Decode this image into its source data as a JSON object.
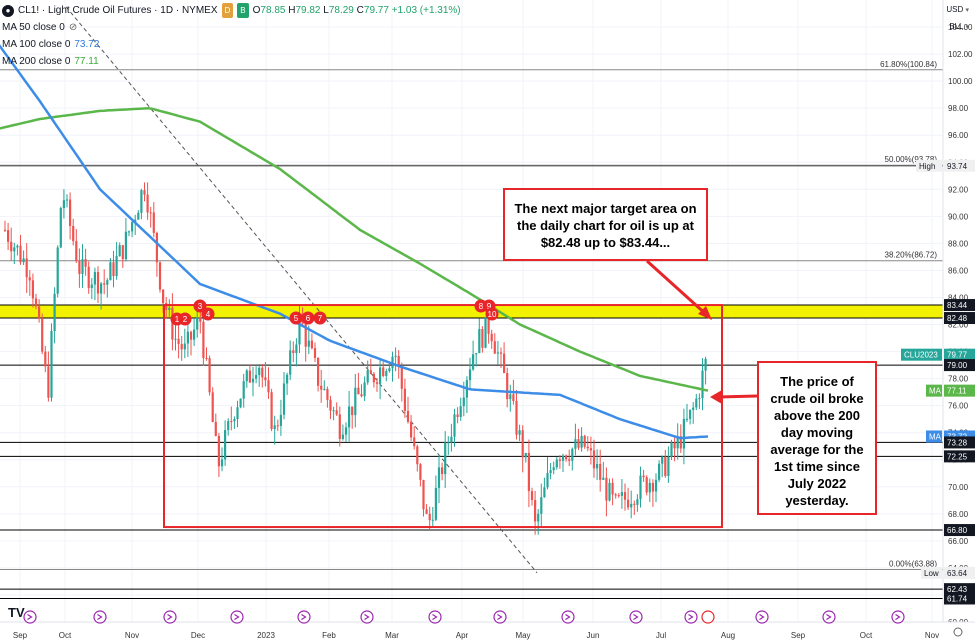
{
  "header": {
    "symbol_icon": "oil-drop-icon",
    "title": "CL1! · Light Crude Oil Futures · 1D · NYMEX",
    "badge_d": "D",
    "badge_b": "B",
    "ohlc": {
      "o": "78.85",
      "h": "79.82",
      "l": "78.29",
      "c": "79.77",
      "change": "+1.03 (+1.31%)"
    },
    "ma50_label": "MA 50 close 0",
    "ma100_label": "MA 100 close 0",
    "ma100_value": "73.72",
    "ma200_label": "MA 200 close 0",
    "ma200_value": "77.11",
    "currency": "USD",
    "unit": "BLL"
  },
  "callouts": {
    "target": "The next major target area on the daily chart for oil is up at $82.48 up to $83.44...",
    "broke": "The price of crude oil broke above the 200 day moving average for the 1st time since July 2022 yesterday."
  },
  "colors": {
    "up": "#26a69a",
    "down": "#ef5350",
    "ma100": "#3d8de8",
    "ma200": "#5bb74a",
    "zone": "#f2f200",
    "box": "#e8262a",
    "grid": "#f0f3fa"
  },
  "chart_data": {
    "type": "candlestick",
    "symbol": "CL1!",
    "timeframe": "1D",
    "exchange": "NYMEX",
    "ylim": [
      60,
      106
    ],
    "y_ticks": [
      60.0,
      62.0,
      64.0,
      66.0,
      68.0,
      70.0,
      72.0,
      74.0,
      76.0,
      78.0,
      80.0,
      82.0,
      84.0,
      86.0,
      88.0,
      90.0,
      92.0,
      94.0,
      96.0,
      98.0,
      100.0,
      102.0,
      104.0
    ],
    "x_labels": [
      "Sep",
      "Oct",
      "Nov",
      "Dec",
      "2023",
      "Feb",
      "Mar",
      "Apr",
      "May",
      "Jun",
      "Jul",
      "Aug",
      "Sep",
      "Oct",
      "Nov"
    ],
    "fib_levels": [
      {
        "label": "61.80%(100.84)",
        "value": 100.84
      },
      {
        "label": "50.00%(93.78)",
        "value": 93.78
      },
      {
        "label": "38.20%(86.72)",
        "value": 86.72
      },
      {
        "label": "0.00%(63.88)",
        "value": 63.88
      }
    ],
    "horizontal_lines": [
      93.74,
      83.44,
      82.48,
      79.0,
      73.28,
      72.25,
      66.8,
      62.43,
      61.74
    ],
    "target_zone": [
      82.48,
      83.44
    ],
    "price_labels": [
      {
        "text": "High",
        "value": "93.74"
      },
      {
        "text": "",
        "value": "83.44"
      },
      {
        "text": "",
        "value": "82.48"
      },
      {
        "text": "CLU2023",
        "value": "79.77"
      },
      {
        "text": "",
        "value": "79.00"
      },
      {
        "text": "MA",
        "value": "77.11"
      },
      {
        "text": "MA",
        "value": "73.72"
      },
      {
        "text": "",
        "value": "73.28"
      },
      {
        "text": "",
        "value": "72.25"
      },
      {
        "text": "",
        "value": "66.80"
      },
      {
        "text": "Low",
        "value": "63.64"
      },
      {
        "text": "",
        "value": "62.43"
      },
      {
        "text": "",
        "value": "61.74"
      }
    ],
    "touch_markers": [
      "1",
      "2",
      "3",
      "4",
      "5",
      "6",
      "7",
      "8",
      "9",
      "10"
    ],
    "ma100_anchors": [
      [
        -12,
        103.8
      ],
      [
        40,
        98.5
      ],
      [
        100,
        92.0
      ],
      [
        200,
        85.0
      ],
      [
        280,
        82.8
      ],
      [
        330,
        80.8
      ],
      [
        400,
        78.9
      ],
      [
        470,
        77.2
      ],
      [
        560,
        76.8
      ],
      [
        620,
        75.0
      ],
      [
        680,
        73.6
      ],
      [
        708,
        73.72
      ]
    ],
    "ma200_anchors": [
      [
        -12,
        96.3
      ],
      [
        40,
        97.2
      ],
      [
        100,
        97.8
      ],
      [
        150,
        98.0
      ],
      [
        200,
        97.0
      ],
      [
        280,
        93.5
      ],
      [
        360,
        89.0
      ],
      [
        420,
        86.5
      ],
      [
        470,
        84.3
      ],
      [
        520,
        82.0
      ],
      [
        580,
        80.0
      ],
      [
        640,
        78.2
      ],
      [
        708,
        77.11
      ]
    ],
    "close_anchors": [
      [
        5,
        89.0
      ],
      [
        30,
        86.0
      ],
      [
        48,
        77.0
      ],
      [
        62,
        92.0
      ],
      [
        80,
        86.0
      ],
      [
        105,
        85.0
      ],
      [
        125,
        88.0
      ],
      [
        145,
        92.5
      ],
      [
        163,
        84.0
      ],
      [
        175,
        81.0
      ],
      [
        185,
        80.0
      ],
      [
        200,
        82.5
      ],
      [
        218,
        71.5
      ],
      [
        235,
        76.0
      ],
      [
        258,
        79.5
      ],
      [
        275,
        74.0
      ],
      [
        300,
        82.5
      ],
      [
        318,
        78.0
      ],
      [
        340,
        74.5
      ],
      [
        365,
        77.5
      ],
      [
        395,
        80.0
      ],
      [
        428,
        67.0
      ],
      [
        450,
        74.0
      ],
      [
        475,
        80.5
      ],
      [
        490,
        82.0
      ],
      [
        508,
        77.0
      ],
      [
        525,
        72.0
      ],
      [
        535,
        67.0
      ],
      [
        555,
        72.5
      ],
      [
        585,
        73.0
      ],
      [
        615,
        68.5
      ],
      [
        640,
        70.0
      ],
      [
        660,
        71.0
      ],
      [
        680,
        73.5
      ],
      [
        695,
        76.0
      ],
      [
        708,
        79.77
      ]
    ]
  }
}
